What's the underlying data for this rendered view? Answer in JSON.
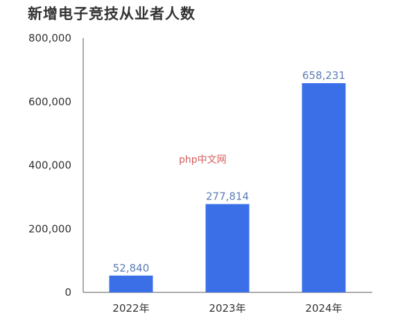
{
  "chart_data": {
    "type": "bar",
    "title": "新增电子竞技从业者人数",
    "categories": [
      "2022年",
      "2023年",
      "2024年"
    ],
    "values": [
      52840,
      277814,
      658231
    ],
    "data_labels": [
      "52,840",
      "277,814",
      "658,231"
    ],
    "ylim": [
      0,
      800000
    ],
    "yticks": [
      0,
      200000,
      400000,
      600000,
      800000
    ],
    "ytick_labels": [
      "0",
      "200,000",
      "400,000",
      "600,000",
      "800,000"
    ],
    "grid": false,
    "colors": {
      "bar": "#3b6fe8",
      "data_label": "#5b7cb5"
    }
  },
  "watermark": "php中文网"
}
